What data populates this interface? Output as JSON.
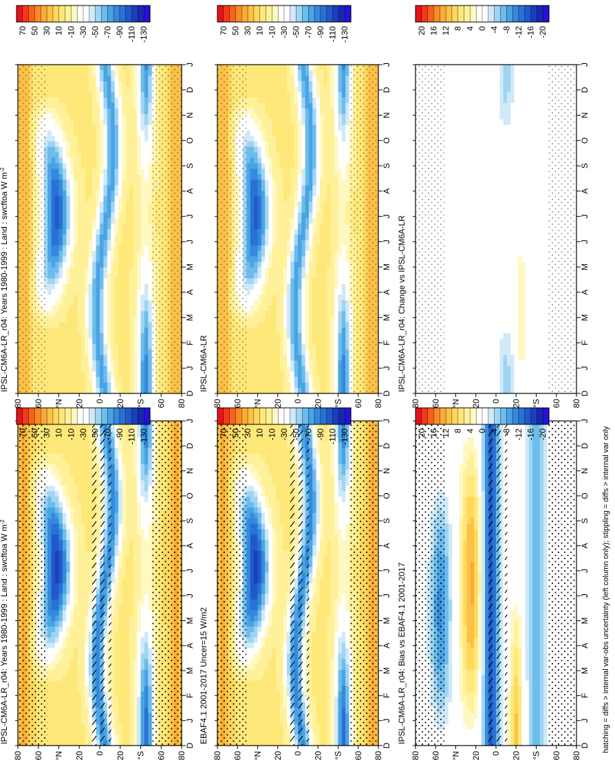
{
  "figure": {
    "caption": "hatching = diffs > internal var-obs uncertainty (left column only); stippling = diffs > internal var only"
  },
  "colors": {
    "abs_scale": [
      "#e8121a",
      "#f03a1a",
      "#f5621e",
      "#f98a25",
      "#fbaa35",
      "#fcc248",
      "#fdd85e",
      "#fee87a",
      "#fff199",
      "#fff8c2",
      "#ffffff",
      "#ffffff",
      "#cfe9f8",
      "#9fd5f2",
      "#6cbcec",
      "#4aa3e4",
      "#3589dc",
      "#2872d3",
      "#2059c8",
      "#1a3fbc",
      "#1927b0",
      "#2412d8"
    ],
    "diff_scale": [
      "#e8121a",
      "#f03a1a",
      "#f5621e",
      "#f98a25",
      "#fbaa35",
      "#fcc248",
      "#fdd85e",
      "#fee87a",
      "#fff199",
      "#fff8c2",
      "#ffffff",
      "#ffffff",
      "#cfe9f8",
      "#9fd5f2",
      "#6cbcec",
      "#4aa3e4",
      "#3589dc",
      "#2872d3",
      "#2059c8",
      "#1a3fbc",
      "#1927b0",
      "#2412d8"
    ]
  },
  "chart_data": [
    {
      "id": "top-left",
      "type": "heatmap",
      "title": "IPSL-CM6A-LR_r04: Years 1980-1999 : Land : swcftoa W m",
      "title_sup": "-2",
      "x": [
        "D",
        "J",
        "F",
        "M",
        "A",
        "M",
        "J",
        "J",
        "A",
        "S",
        "O",
        "N",
        "D",
        "J"
      ],
      "y_ticks": [
        "80",
        "60",
        "°N",
        "20",
        "0",
        "20",
        "°S",
        "60",
        "80"
      ],
      "colorbar": {
        "ticks": [
          "70",
          "50",
          "30",
          "10",
          "-10",
          "-30",
          "-50",
          "-70",
          "-90",
          "-110",
          "-130"
        ],
        "scale": "abs"
      },
      "hatching": true,
      "stippling": true
    },
    {
      "id": "top-right",
      "type": "heatmap",
      "title": "IPSL-CM6A-LR_r04: Years 1980-1999 : Land : swcftoa W m",
      "title_sup": "-2",
      "x": [
        "D",
        "J",
        "F",
        "M",
        "A",
        "M",
        "J",
        "J",
        "A",
        "S",
        "O",
        "N",
        "D",
        "J"
      ],
      "y_ticks": [
        "80",
        "60",
        "°N",
        "20",
        "0",
        "20",
        "°S",
        "60",
        "80"
      ],
      "colorbar": {
        "ticks": [
          "70",
          "50",
          "30",
          "10",
          "-10",
          "-30",
          "-50",
          "-70",
          "-90",
          "-110",
          "-130"
        ],
        "scale": "abs"
      },
      "hatching": false,
      "stippling": true
    },
    {
      "id": "mid-left",
      "type": "heatmap",
      "title": "EBAF4.1 2001-2017 Uncer=15 W/m2",
      "title_sup": "",
      "x": [
        "D",
        "J",
        "F",
        "M",
        "A",
        "M",
        "J",
        "J",
        "A",
        "S",
        "O",
        "N",
        "D",
        "J"
      ],
      "y_ticks": [
        "80",
        "60",
        "°N",
        "20",
        "0",
        "20",
        "°S",
        "60",
        "80"
      ],
      "colorbar": {
        "ticks": [
          "70",
          "50",
          "30",
          "10",
          "-10",
          "-30",
          "-50",
          "-70",
          "-90",
          "-110",
          "-130"
        ],
        "scale": "abs"
      },
      "hatching": true,
      "stippling": true
    },
    {
      "id": "mid-right",
      "type": "heatmap",
      "title": "IPSL-CM6A-LR",
      "title_sup": "",
      "x": [
        "D",
        "J",
        "F",
        "M",
        "A",
        "M",
        "J",
        "J",
        "A",
        "S",
        "O",
        "N",
        "D",
        "J"
      ],
      "y_ticks": [
        "80",
        "60",
        "°N",
        "20",
        "0",
        "20",
        "°S",
        "60",
        "80"
      ],
      "colorbar": {
        "ticks": [
          "70",
          "50",
          "30",
          "10",
          "-10",
          "-30",
          "-50",
          "-70",
          "-90",
          "-110",
          "-130"
        ],
        "scale": "abs"
      },
      "hatching": false,
      "stippling": true
    },
    {
      "id": "bot-left",
      "type": "heatmap",
      "title": "IPSL-CM6A-LR_r04: Bias vs EBAF4.1 2001-2017",
      "title_sup": "",
      "x": [
        "D",
        "J",
        "F",
        "M",
        "A",
        "M",
        "J",
        "J",
        "A",
        "S",
        "O",
        "N",
        "D",
        "J"
      ],
      "y_ticks": [
        "80",
        "60",
        "°N",
        "20",
        "0",
        "20",
        "°S",
        "60",
        "80"
      ],
      "colorbar": {
        "ticks": [
          "20",
          "16",
          "12",
          "8",
          "4",
          "0",
          "-4",
          "-8",
          "-12",
          "-16",
          "-20"
        ],
        "scale": "diff"
      },
      "hatching": true,
      "stippling": true
    },
    {
      "id": "bot-right",
      "type": "heatmap",
      "title": "IPSL-CM6A-LR_r04: Change vs IPSL-CM6A-LR",
      "title_sup": "",
      "x": [
        "D",
        "J",
        "F",
        "M",
        "A",
        "M",
        "J",
        "J",
        "A",
        "S",
        "O",
        "N",
        "D",
        "J"
      ],
      "y_ticks": [
        "80",
        "60",
        "°N",
        "20",
        "0",
        "20",
        "°S",
        "60",
        "80"
      ],
      "colorbar": {
        "ticks": [
          "20",
          "16",
          "12",
          "8",
          "4",
          "0",
          "-4",
          "-8",
          "-12",
          "-16",
          "-20"
        ],
        "scale": "diff"
      },
      "hatching": false,
      "stippling": true
    }
  ]
}
